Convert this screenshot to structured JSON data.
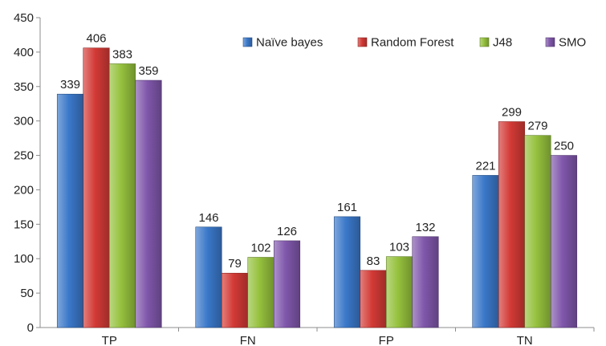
{
  "chart_data": {
    "type": "bar",
    "title": "",
    "xlabel": "",
    "ylabel": "",
    "categories": [
      "TP",
      "FN",
      "FP",
      "TN"
    ],
    "ylim": [
      0,
      450
    ],
    "yticks": [
      0,
      50,
      100,
      150,
      200,
      250,
      300,
      350,
      400,
      450
    ],
    "grid": false,
    "legend_position": "top-right",
    "series": [
      {
        "name": "Naïve bayes",
        "values": [
          339,
          146,
          161,
          221
        ],
        "color": "#3a78c9"
      },
      {
        "name": "Random Forest",
        "values": [
          406,
          79,
          83,
          299
        ],
        "color": "#d33a36"
      },
      {
        "name": "J48",
        "values": [
          383,
          102,
          103,
          279
        ],
        "color": "#95c13d"
      },
      {
        "name": "SMO",
        "values": [
          359,
          126,
          132,
          250
        ],
        "color": "#8057ab"
      }
    ]
  }
}
